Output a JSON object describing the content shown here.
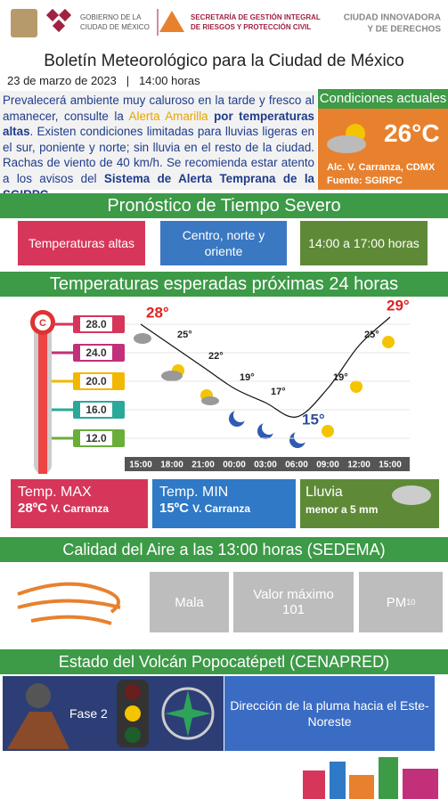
{
  "header": {
    "gov_line1": "GOBIERNO DE LA",
    "gov_line2": "CIUDAD DE MÉXICO",
    "sec_line1": "SECRETARÍA DE GESTIÓN INTEGRAL",
    "sec_line2": "DE RIESGOS Y PROTECCIÓN CIVIL",
    "motto_line1": "CIUDAD INNOVADORA",
    "motto_line2": "Y DE DERECHOS"
  },
  "title": "Boletín Meteorológico para la Ciudad de México",
  "date": "23 de marzo de 2023",
  "separator": "|",
  "time": "14:00 horas",
  "summary": [
    "Prevalecerá ambiente muy caluroso en la tarde y fresco al amanecer, consulte la ",
    "Alerta Amarilla",
    " por temperaturas altas",
    ". Existen condiciones limitadas para lluvias ligeras en el sur, poniente y norte; sin lluvia en  el resto de la ciudad. Rachas de viento de 40 km/h. Se recomienda estar atento a los avisos del ",
    "Sistema de Alerta Temprana de la SGIRPC",
    "."
  ],
  "current": {
    "title": "Condiciones actuales",
    "temperature": "26°C",
    "location": "Alc. V. Carranza, CDMX",
    "source": "Fuente: SGIRPC"
  },
  "severe": {
    "title": "Pronóstico de Tiempo Severo",
    "items": [
      "Temperaturas altas",
      "Centro, norte y oriente",
      "14:00 a 17:00 horas"
    ]
  },
  "chart_data": {
    "type": "line",
    "title": "Temperaturas esperadas próximas 24 horas",
    "categories": [
      "15:00",
      "18:00",
      "21:00",
      "00:00",
      "03:00",
      "06:00",
      "09:00",
      "12:00",
      "15:00"
    ],
    "values": [
      28,
      25,
      22,
      19,
      17,
      15,
      19,
      25,
      29
    ],
    "value_labels": [
      "28°",
      "25°",
      "22°",
      "19°",
      "17°",
      "15°",
      "19°",
      "25°",
      "29°"
    ],
    "color": "#111111",
    "ylim": [
      9,
      31
    ],
    "yticks": [
      {
        "value": 28,
        "label": "28.0"
      },
      {
        "value": 24,
        "label": "24.0"
      },
      {
        "value": 20,
        "label": "20.0"
      },
      {
        "value": 16,
        "label": "16.0"
      },
      {
        "value": 12,
        "label": "12.0"
      }
    ],
    "tick_colors": [
      "#d6365a",
      "#c2307a",
      "#f2b800",
      "#2ba89a",
      "#6aae3a"
    ],
    "grid": true
  },
  "cards": {
    "max": {
      "label": "Temp. MAX",
      "value": "28ºC",
      "place": "V. Carranza"
    },
    "min": {
      "label": "Temp. MIN",
      "value": "15ºC",
      "place": "V. Carranza"
    },
    "rain": {
      "label": "Lluvia",
      "value": "menor a 5 mm"
    }
  },
  "air": {
    "title": "Calidad del Aire a las 13:00 horas (SEDEMA)",
    "quality": "Mala",
    "max_label": "Valor máximo",
    "max_value": "101",
    "pollutant": "PM",
    "pollutant_sub": "10"
  },
  "volcano": {
    "title": "Estado del Volcán Popocatépetl (CENAPRED)",
    "phase": "Fase 2",
    "plume": "Dirección de la pluma hacia el Este-Noreste"
  }
}
